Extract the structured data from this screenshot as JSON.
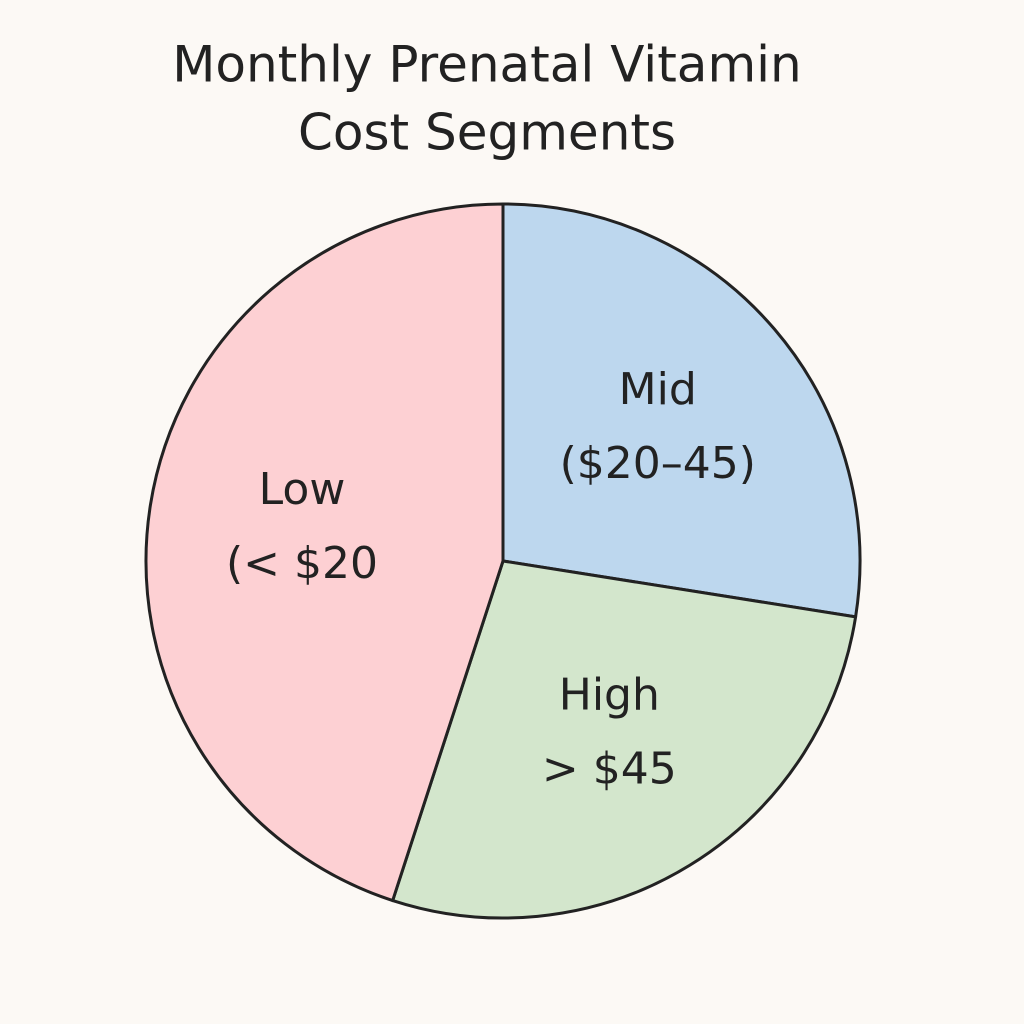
{
  "chart_data": {
    "type": "pie",
    "title": [
      "Monthly Prenatal Vitamin",
      "Cost Segments"
    ],
    "categories": [
      [
        "Mid",
        "($20–45)"
      ],
      [
        "High",
        "> $45"
      ],
      [
        "Low",
        "(< $20"
      ]
    ],
    "values": [
      27.5,
      27.5,
      45
    ],
    "colors": [
      "#bdd7ee",
      "#d3e6cc",
      "#fdd0d3"
    ]
  }
}
